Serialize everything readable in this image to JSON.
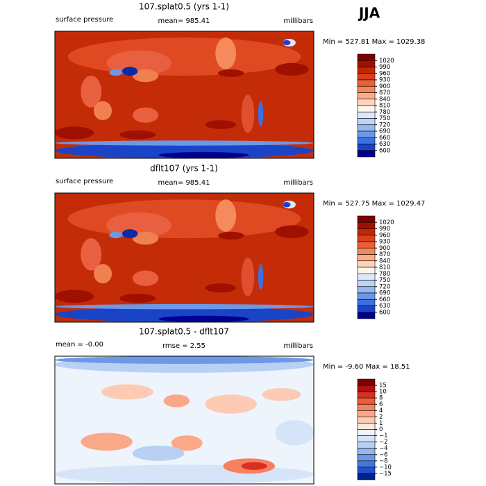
{
  "label": "JJA",
  "chart_data": [
    {
      "type": "contour",
      "title": "107.splat0.5 (yrs 1-1)",
      "variable": "surface pressure",
      "mean": "mean= 985.41",
      "units": "millibars",
      "range": "Min = 527.81 Max = 1029.38",
      "levels": [
        1020,
        990,
        960,
        930,
        900,
        870,
        840,
        810,
        780,
        750,
        720,
        690,
        660,
        630,
        600
      ],
      "colors": [
        "#800000",
        "#a01000",
        "#c02800",
        "#d84020",
        "#ec6038",
        "#f68658",
        "#fbac88",
        "#fdd4bc",
        "#fff4ec",
        "#dce8fa",
        "#bcd4f6",
        "#94b8f0",
        "#6c98e8",
        "#3c70de",
        "#1a44c8",
        "#000090"
      ]
    },
    {
      "type": "contour",
      "title": "dflt107 (yrs 1-1)",
      "variable": "surface pressure",
      "mean": "mean= 985.41",
      "units": "millibars",
      "range": "Min = 527.75 Max = 1029.47",
      "levels": [
        1020,
        990,
        960,
        930,
        900,
        870,
        840,
        810,
        780,
        750,
        720,
        690,
        660,
        630,
        600
      ],
      "colors": [
        "#800000",
        "#a01000",
        "#c02800",
        "#d84020",
        "#ec6038",
        "#f68658",
        "#fbac88",
        "#fdd4bc",
        "#fff4ec",
        "#dce8fa",
        "#bcd4f6",
        "#94b8f0",
        "#6c98e8",
        "#3c70de",
        "#1a44c8",
        "#000090"
      ]
    },
    {
      "type": "contour",
      "title": "107.splat0.5 - dflt107",
      "variable": "mean =   -0.00",
      "mean": "rmse =    2.55",
      "units": "millibars",
      "range": "Min =  -9.60 Max =  18.51",
      "levels": [
        15,
        10,
        8,
        6,
        4,
        2,
        1,
        0,
        {
          "value": -1,
          "label": "−1"
        },
        {
          "value": -2,
          "label": "−2"
        },
        {
          "value": -4,
          "label": "−4"
        },
        {
          "value": -6,
          "label": "−6"
        },
        {
          "value": -8,
          "label": "−8"
        },
        {
          "value": -10,
          "label": "−10"
        },
        {
          "value": -15,
          "label": "−15"
        }
      ],
      "colors": [
        "#800000",
        "#b01010",
        "#d83020",
        "#ee5a3c",
        "#f68060",
        "#fba888",
        "#fdcab4",
        "#fee8dc",
        "#eef4fc",
        "#d6e4f8",
        "#b8d0f4",
        "#94b6ee",
        "#6e98e6",
        "#4676de",
        "#2450cc",
        "#00208e"
      ]
    }
  ]
}
